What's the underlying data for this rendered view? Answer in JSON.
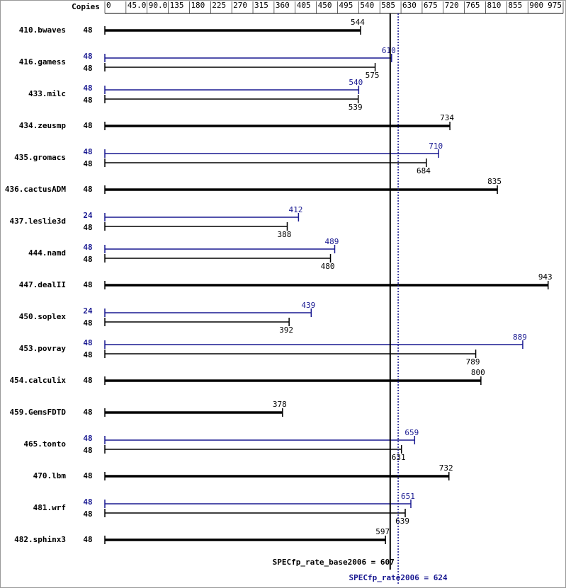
{
  "chart_data": {
    "type": "bar",
    "orientation": "horizontal",
    "copies_header": "Copies",
    "categories": [
      "410.bwaves",
      "416.gamess",
      "433.milc",
      "434.zeusmp",
      "435.gromacs",
      "436.cactusADM",
      "437.leslie3d",
      "444.namd",
      "447.dealII",
      "450.soplex",
      "453.povray",
      "454.calculix",
      "459.GemsFDTD",
      "465.tonto",
      "470.lbm",
      "481.wrf",
      "482.sphinx3"
    ],
    "series": [
      {
        "color": "#000000",
        "copies": [
          48,
          48,
          48,
          48,
          48,
          48,
          48,
          48,
          48,
          48,
          48,
          48,
          48,
          48,
          48,
          48,
          48
        ],
        "values": [
          544,
          575,
          539,
          734,
          684,
          835,
          388,
          480,
          943,
          392,
          789,
          800,
          378,
          631,
          732,
          639,
          597
        ]
      },
      {
        "color": "#191991",
        "copies": [
          null,
          48,
          48,
          null,
          48,
          null,
          24,
          48,
          null,
          24,
          48,
          null,
          null,
          48,
          null,
          48,
          null
        ],
        "values": [
          null,
          610,
          540,
          null,
          710,
          null,
          412,
          489,
          null,
          439,
          889,
          null,
          null,
          659,
          null,
          651,
          null
        ]
      }
    ],
    "xlim": [
      0,
      975
    ],
    "xticks": [
      0,
      {
        "value": 45,
        "label": "45.0"
      },
      {
        "value": 90,
        "label": "90.0"
      },
      135,
      180,
      225,
      270,
      315,
      360,
      405,
      450,
      495,
      540,
      585,
      630,
      675,
      720,
      765,
      810,
      855,
      900,
      975
    ],
    "reference_lines": [
      {
        "value": 607,
        "label": "SPECfp_rate_base2006 = 607",
        "color": "#000000",
        "dashed": false
      },
      {
        "value": 624,
        "label": "SPECfp_rate2006 = 624",
        "color": "#191991",
        "dashed": true
      }
    ]
  }
}
